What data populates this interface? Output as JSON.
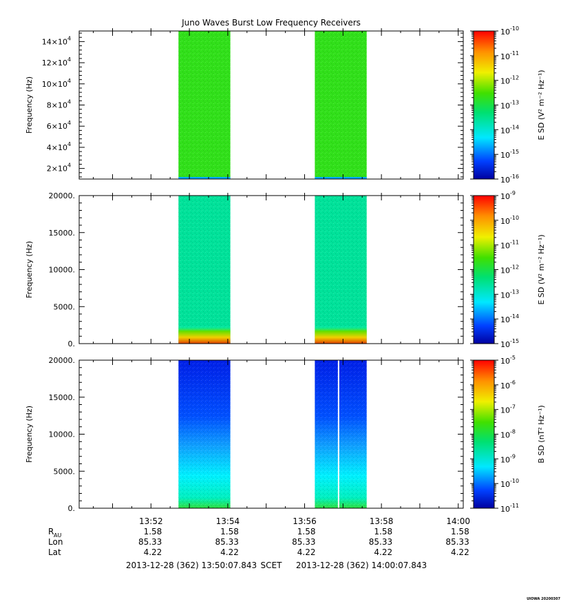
{
  "chart_data": {
    "type": "heatmap",
    "title": "Juno Waves Burst Low Frequency Receivers",
    "time_range": [
      "13:50:07.843",
      "14:00:07.843"
    ],
    "bursts": [
      {
        "start": "13:52:43",
        "end": "13:54:04"
      },
      {
        "start": "13:56:16",
        "end": "13:57:37"
      }
    ],
    "panels": [
      {
        "ylabel": "Frequency (Hz)",
        "ylim": [
          10000,
          150000
        ],
        "yticks": [
          {
            "v": 20000,
            "m": "2",
            "e": "4"
          },
          {
            "v": 40000,
            "m": "4",
            "e": "4"
          },
          {
            "v": 60000,
            "m": "6",
            "e": "4"
          },
          {
            "v": 80000,
            "m": "8",
            "e": "4"
          },
          {
            "v": 100000,
            "m": "10",
            "e": "4"
          },
          {
            "v": 120000,
            "m": "12",
            "e": "4"
          },
          {
            "v": 140000,
            "m": "14",
            "e": "4"
          }
        ],
        "colorbar_label": "E SD (V² m⁻² Hz⁻¹)",
        "colorbar_exponents": [
          -16,
          -10
        ],
        "level": 0.55,
        "bottom_low_band": true
      },
      {
        "ylabel": "Frequency (Hz)",
        "ylim": [
          0,
          20000
        ],
        "yticks": [
          {
            "v": 0,
            "label": "0."
          },
          {
            "v": 5000,
            "label": "5000."
          },
          {
            "v": 10000,
            "label": "10000."
          },
          {
            "v": 15000,
            "label": "15000."
          },
          {
            "v": 20000,
            "label": "20000."
          }
        ],
        "colorbar_label": "E SD (V² m⁻² Hz⁻¹)",
        "colorbar_exponents": [
          -15,
          -9
        ],
        "level": 0.4,
        "bottom_hot_band": true
      },
      {
        "ylabel": "Frequency (Hz)",
        "ylim": [
          0,
          20000
        ],
        "yticks": [
          {
            "v": 0,
            "label": "0."
          },
          {
            "v": 5000,
            "label": "5000."
          },
          {
            "v": 10000,
            "label": "10000."
          },
          {
            "v": 15000,
            "label": "15000."
          },
          {
            "v": 20000,
            "label": "20000."
          }
        ],
        "colorbar_label": "B SD (nT² Hz⁻¹)",
        "colorbar_exponents": [
          -11,
          -5
        ],
        "level": 0.15,
        "gradient_to_low": true,
        "gap": "13:56:52"
      }
    ],
    "xticks": [
      "13:52",
      "13:54",
      "13:56",
      "13:58",
      "14:00"
    ],
    "ephemeris": [
      {
        "label": "R",
        "sub": "AU",
        "values": [
          "1.58",
          "1.58",
          "1.58",
          "1.58",
          "1.58"
        ]
      },
      {
        "label": "Lon",
        "sub": "",
        "values": [
          "85.33",
          "85.33",
          "85.33",
          "85.33",
          "85.33"
        ]
      },
      {
        "label": "Lat",
        "sub": "",
        "values": [
          "4.22",
          "4.22",
          "4.22",
          "4.22",
          "4.22"
        ]
      }
    ],
    "footer": {
      "start": "2013-12-28 (362) 13:50:07.843",
      "frame": "SCET",
      "end": "2013-12-28 (362) 14:00:07.843"
    },
    "credit": "UIOWA 20200307"
  }
}
